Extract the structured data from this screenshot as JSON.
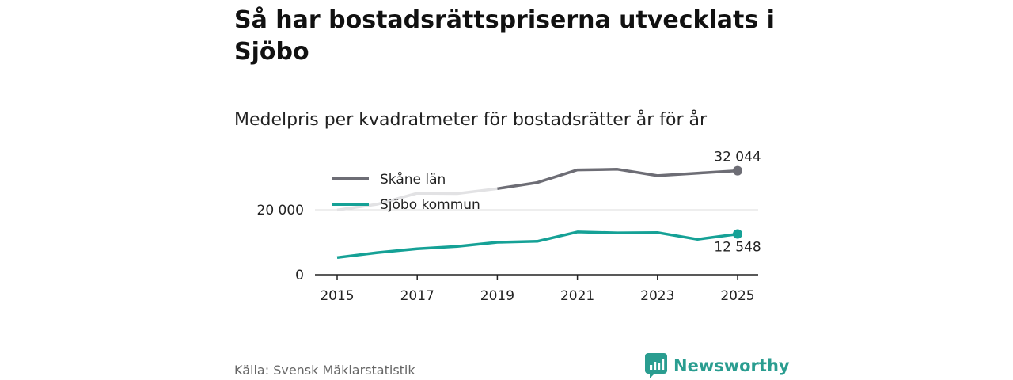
{
  "title": "Så har bostadsrättspriserna utvecklats i Sjöbo",
  "subtitle": "Medelpris per kvadratmeter för bostadsrätter år för år",
  "source": "Källa: Svensk Mäklarstatistik",
  "brand": "Newsworthy",
  "colors": {
    "skane": "#6d6d75",
    "skane_faded": "#e2e2e4",
    "sjobo": "#15a196",
    "axis": "#222222",
    "grid": "#dcdcdc",
    "brand": "#2a9d90"
  },
  "chart_data": {
    "type": "line",
    "title": "Medelpris per kvadratmeter för bostadsrätter år för år",
    "xlabel": "",
    "ylabel": "",
    "x": [
      2015,
      2016,
      2017,
      2018,
      2019,
      2020,
      2021,
      2022,
      2023,
      2024,
      2025
    ],
    "x_ticks": [
      "2015",
      "2017",
      "2019",
      "2021",
      "2023",
      "2025"
    ],
    "y_ticks": [
      {
        "value": 0,
        "label": "0"
      },
      {
        "value": 20000,
        "label": "20 000"
      }
    ],
    "ylim": [
      0,
      32044
    ],
    "grid": true,
    "legend_position": "top-left",
    "series": [
      {
        "name": "Skåne län",
        "color": "#6d6d75",
        "values": [
          19900,
          21700,
          25100,
          25000,
          26500,
          28400,
          32300,
          32500,
          30500,
          31300,
          32044
        ],
        "end_label": "32 044"
      },
      {
        "name": "Sjöbo kommun",
        "color": "#15a196",
        "values": [
          5300,
          6800,
          8000,
          8700,
          10000,
          10300,
          13200,
          12900,
          13000,
          10900,
          12548
        ],
        "end_label": "12 548"
      }
    ]
  }
}
